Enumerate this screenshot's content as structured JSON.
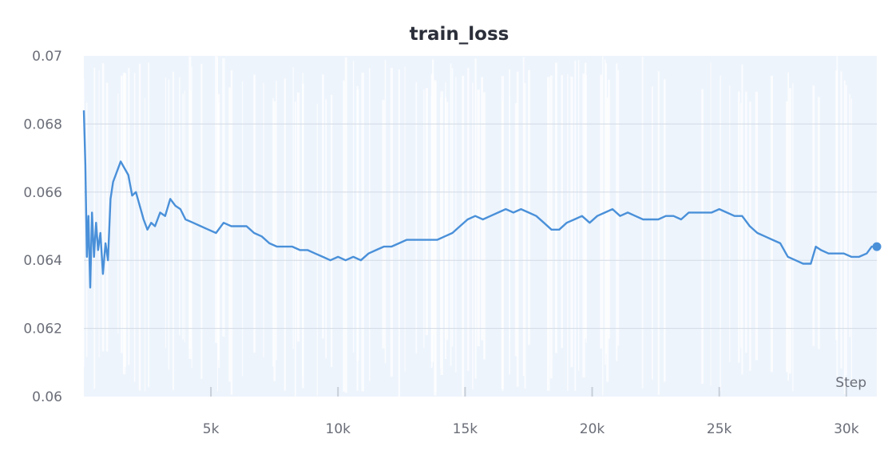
{
  "chart_data": {
    "type": "line",
    "title": "train_loss",
    "xlabel": "Step",
    "ylabel": "",
    "xlim": [
      0,
      31200
    ],
    "ylim": [
      0.06,
      0.07
    ],
    "x_ticks": [
      5000,
      10000,
      15000,
      20000,
      25000,
      30000
    ],
    "x_tick_labels": [
      "5k",
      "10k",
      "15k",
      "20k",
      "25k",
      "30k"
    ],
    "y_ticks": [
      0.06,
      0.062,
      0.064,
      0.066,
      0.068,
      0.07
    ],
    "y_tick_labels": [
      "0.06",
      "0.062",
      "0.064",
      "0.066",
      "0.068",
      "0.07"
    ],
    "grid": true,
    "series": [
      {
        "color": "#4a90d9",
        "raw_color": "#e8f1fb",
        "smoothed": true,
        "x": [
          0,
          60,
          120,
          180,
          250,
          320,
          400,
          480,
          560,
          650,
          750,
          850,
          950,
          1050,
          1150,
          1300,
          1450,
          1600,
          1750,
          1900,
          2050,
          2200,
          2350,
          2500,
          2650,
          2800,
          3000,
          3200,
          3400,
          3600,
          3800,
          4000,
          4300,
          4600,
          4900,
          5200,
          5500,
          5800,
          6100,
          6400,
          6700,
          7000,
          7300,
          7600,
          7900,
          8200,
          8500,
          8800,
          9100,
          9400,
          9700,
          10000,
          10300,
          10600,
          10900,
          11200,
          11500,
          11800,
          12100,
          12400,
          12700,
          13000,
          13300,
          13600,
          13900,
          14200,
          14500,
          14800,
          15100,
          15400,
          15700,
          16000,
          16300,
          16600,
          16900,
          17200,
          17500,
          17800,
          18100,
          18400,
          18700,
          19000,
          19300,
          19600,
          19900,
          20200,
          20500,
          20800,
          21100,
          21400,
          21700,
          22000,
          22300,
          22600,
          22900,
          23200,
          23500,
          23800,
          24100,
          24400,
          24700,
          25000,
          25300,
          25600,
          25900,
          26200,
          26500,
          26800,
          27100,
          27400,
          27700,
          28000,
          28300,
          28600,
          28800,
          29000,
          29300,
          29600,
          29900,
          30200,
          30500,
          30800,
          31000,
          31200
        ],
        "y": [
          0.0684,
          0.0668,
          0.0641,
          0.0653,
          0.0632,
          0.0654,
          0.0641,
          0.0651,
          0.0643,
          0.0648,
          0.0636,
          0.0645,
          0.064,
          0.0658,
          0.0663,
          0.0666,
          0.0669,
          0.0667,
          0.0665,
          0.0659,
          0.066,
          0.0656,
          0.0652,
          0.0649,
          0.0651,
          0.065,
          0.0654,
          0.0653,
          0.0658,
          0.0656,
          0.0655,
          0.0652,
          0.0651,
          0.065,
          0.0649,
          0.0648,
          0.0651,
          0.065,
          0.065,
          0.065,
          0.0648,
          0.0647,
          0.0645,
          0.0644,
          0.0644,
          0.0644,
          0.0643,
          0.0643,
          0.0642,
          0.0641,
          0.064,
          0.0641,
          0.064,
          0.0641,
          0.064,
          0.0642,
          0.0643,
          0.0644,
          0.0644,
          0.0645,
          0.0646,
          0.0646,
          0.0646,
          0.0646,
          0.0646,
          0.0647,
          0.0648,
          0.065,
          0.0652,
          0.0653,
          0.0652,
          0.0653,
          0.0654,
          0.0655,
          0.0654,
          0.0655,
          0.0654,
          0.0653,
          0.0651,
          0.0649,
          0.0649,
          0.0651,
          0.0652,
          0.0653,
          0.0651,
          0.0653,
          0.0654,
          0.0655,
          0.0653,
          0.0654,
          0.0653,
          0.0652,
          0.0652,
          0.0652,
          0.0653,
          0.0653,
          0.0652,
          0.0654,
          0.0654,
          0.0654,
          0.0654,
          0.0655,
          0.0654,
          0.0653,
          0.0653,
          0.065,
          0.0648,
          0.0647,
          0.0646,
          0.0645,
          0.0641,
          0.064,
          0.0639,
          0.0639,
          0.0644,
          0.0643,
          0.0642,
          0.0642,
          0.0642,
          0.0641,
          0.0641,
          0.0642,
          0.0644,
          0.0644
        ]
      }
    ],
    "endpoint_marker": true
  }
}
